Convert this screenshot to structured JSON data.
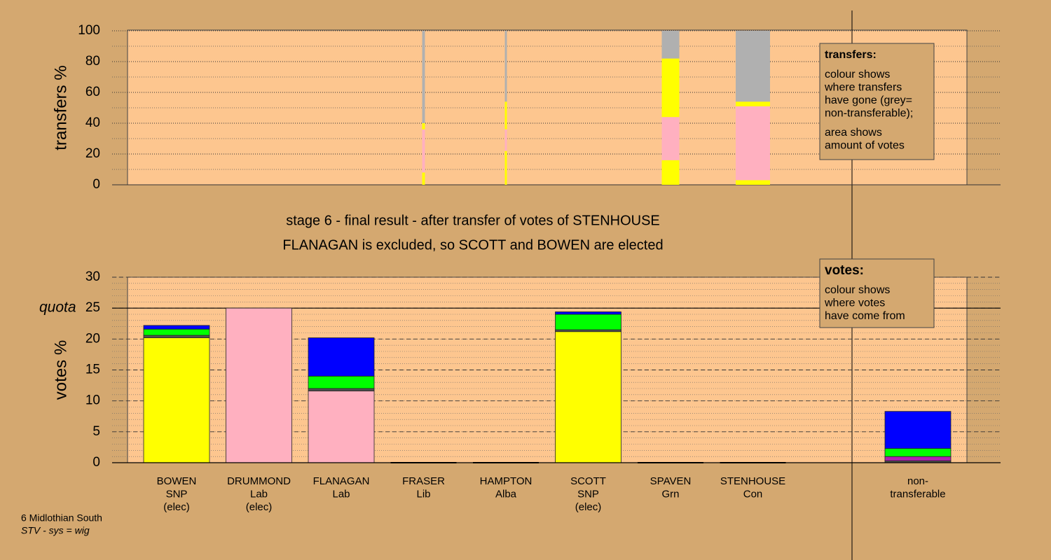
{
  "chart_data": [
    {
      "type": "stacked-bar-width",
      "ylabel": "transfers %",
      "ylim": [
        0,
        100
      ],
      "yticks": [
        0,
        20,
        40,
        60,
        80,
        100
      ],
      "minor_yticks": [
        10,
        30,
        50,
        70,
        90
      ],
      "amounts": [
        0,
        0,
        0,
        0.4,
        0.3,
        0,
        2.55,
        5.0,
        0
      ],
      "series": [
        {
          "color": "#ffff00",
          "values": [
            0,
            0,
            0,
            8,
            22,
            0,
            16,
            3,
            0
          ]
        },
        {
          "color": "#ffb0c0",
          "values": [
            0,
            0,
            0,
            28,
            14,
            0,
            28,
            48,
            0
          ]
        },
        {
          "color": "#ffff00",
          "values": [
            0,
            0,
            0,
            4,
            18,
            0,
            38,
            3,
            0
          ]
        },
        {
          "color": "#b0b0b0",
          "values": [
            0,
            0,
            0,
            60,
            46,
            0,
            18,
            46,
            0
          ]
        }
      ],
      "legend": {
        "title": "transfers:",
        "lines": [
          "colour shows",
          "where transfers",
          "have gone (grey=",
          "non-transferable);",
          "area shows",
          "amount of votes"
        ]
      }
    },
    {
      "type": "stacked-bar",
      "title": [
        "stage 6 - final result - after transfer of votes of STENHOUSE",
        "FLANAGAN is excluded, so SCOTT and BOWEN are elected"
      ],
      "ylabel": "votes %",
      "ylim": [
        0,
        30
      ],
      "yticks": [
        0,
        5,
        10,
        15,
        20,
        25,
        30
      ],
      "minor_step": 1,
      "quota": 25,
      "quota_label": "quota",
      "categories": [
        [
          "BOWEN",
          "SNP",
          "(elec)"
        ],
        [
          "DRUMMOND",
          "Lab",
          "(elec)"
        ],
        [
          "FLANAGAN",
          "Lab"
        ],
        [
          "FRASER",
          "Lib"
        ],
        [
          "HAMPTON",
          "Alba"
        ],
        [
          "SCOTT",
          "SNP",
          "(elec)"
        ],
        [
          "SPAVEN",
          "Grn"
        ],
        [
          "STENHOUSE",
          "Con"
        ],
        [
          "non-",
          "transferable"
        ]
      ],
      "series": [
        {
          "color": "#ffff00",
          "values": [
            20.2,
            0,
            0,
            0,
            0,
            21.2,
            0,
            0,
            0
          ]
        },
        {
          "color": "#ffb0c0",
          "values": [
            0,
            25,
            11.6,
            0,
            0,
            0,
            0,
            0,
            0
          ]
        },
        {
          "color": "#505050",
          "values": [
            0.4,
            0,
            0.4,
            0,
            0,
            0.3,
            0,
            0,
            0.3
          ]
        },
        {
          "color": "#b020b0",
          "values": [
            0,
            0,
            0,
            0,
            0,
            0,
            0,
            0,
            0.7
          ]
        },
        {
          "color": "#00ff00",
          "values": [
            1.0,
            0,
            2.0,
            0,
            0,
            2.5,
            0,
            0,
            1.3
          ]
        },
        {
          "color": "#0000ff",
          "values": [
            0.6,
            0,
            6.2,
            0,
            0,
            0.4,
            0,
            0,
            6.0
          ]
        }
      ],
      "legend": {
        "title": "votes:",
        "lines": [
          "colour shows",
          "where votes",
          "have come from"
        ]
      },
      "footer": [
        "6 Midlothian South",
        "STV - sys = wig"
      ]
    }
  ]
}
